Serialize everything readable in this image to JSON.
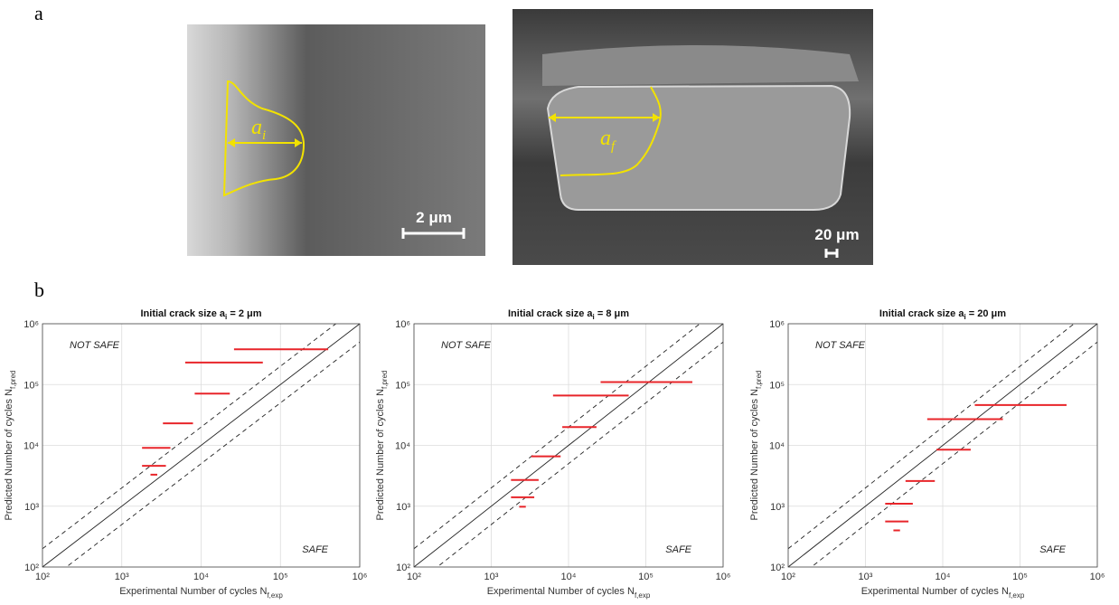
{
  "panel_labels": [
    "a",
    "b"
  ],
  "micrographs": [
    {
      "symbol": "a",
      "subscript": "i",
      "scale_bar": "2 μm"
    },
    {
      "symbol": "a",
      "subscript": "f",
      "scale_bar": "20 μm"
    }
  ],
  "chart_data": [
    {
      "type": "range",
      "title": [
        "Initial crack size a",
        "i",
        " = 2 μm"
      ],
      "xlabel": [
        "Experimental Number of cycles N",
        "f,exp"
      ],
      "ylabel": [
        "Predicted Number of cycles N",
        "f,pred"
      ],
      "annotations": [
        "NOT SAFE",
        "SAFE"
      ],
      "x_low": [
        26000,
        6300,
        8300,
        3300,
        1800,
        1800,
        2300
      ],
      "x_high": [
        400000,
        60000,
        23000,
        7900,
        4100,
        3600,
        2800
      ],
      "values": [
        380000,
        230000,
        71000,
        23000,
        9100,
        4600,
        3300
      ],
      "color": "#e8252a",
      "reference_factor": 2,
      "log": true,
      "grid": true,
      "xlim": [
        100,
        1000000
      ],
      "ylim": [
        100,
        1000000
      ],
      "xticks": [
        {
          "value": 100,
          "label": "10²"
        },
        {
          "value": 1000,
          "label": "10³"
        },
        {
          "value": 10000,
          "label": "10⁴"
        },
        {
          "value": 100000,
          "label": "10⁵"
        },
        {
          "value": 1000000,
          "label": "10⁶"
        }
      ],
      "yticks": [
        {
          "value": 100,
          "label": "10²"
        },
        {
          "value": 1000,
          "label": "10³"
        },
        {
          "value": 10000,
          "label": "10⁴"
        },
        {
          "value": 100000,
          "label": "10⁵"
        },
        {
          "value": 1000000,
          "label": "10⁶"
        }
      ]
    },
    {
      "type": "range",
      "title": [
        "Initial crack size a",
        "i",
        " = 8 μm"
      ],
      "xlabel": [
        "Experimental Number of cycles N",
        "f,exp"
      ],
      "ylabel": [
        "Predicted Number of cycles N",
        "f,pred"
      ],
      "annotations": [
        "NOT SAFE",
        "SAFE"
      ],
      "x_low": [
        26000,
        6300,
        8300,
        3300,
        1800,
        1800,
        2300
      ],
      "x_high": [
        400000,
        60000,
        23000,
        7900,
        4100,
        3600,
        2800
      ],
      "values": [
        110000,
        66000,
        20000,
        6600,
        2700,
        1400,
        980
      ],
      "color": "#e8252a",
      "reference_factor": 2,
      "log": true,
      "grid": true,
      "xlim": [
        100,
        1000000
      ],
      "ylim": [
        100,
        1000000
      ],
      "xticks": [
        {
          "value": 100,
          "label": "10²"
        },
        {
          "value": 1000,
          "label": "10³"
        },
        {
          "value": 10000,
          "label": "10⁴"
        },
        {
          "value": 100000,
          "label": "10⁵"
        },
        {
          "value": 1000000,
          "label": "10⁶"
        }
      ],
      "yticks": [
        {
          "value": 100,
          "label": "10²"
        },
        {
          "value": 1000,
          "label": "10³"
        },
        {
          "value": 10000,
          "label": "10⁴"
        },
        {
          "value": 100000,
          "label": "10⁵"
        },
        {
          "value": 1000000,
          "label": "10⁶"
        }
      ]
    },
    {
      "type": "range",
      "title": [
        "Initial crack size a",
        "i",
        " = 20 μm"
      ],
      "xlabel": [
        "Experimental Number of cycles N",
        "f,exp"
      ],
      "ylabel": [
        "Predicted Number of cycles N",
        "f,pred"
      ],
      "annotations": [
        "NOT SAFE",
        "SAFE"
      ],
      "x_low": [
        26000,
        6300,
        8300,
        3300,
        1800,
        1800,
        2300
      ],
      "x_high": [
        400000,
        60000,
        23000,
        7900,
        4100,
        3600,
        2800
      ],
      "values": [
        46000,
        27000,
        8500,
        2600,
        1100,
        560,
        400
      ],
      "color": "#e8252a",
      "reference_factor": 2,
      "log": true,
      "grid": true,
      "xlim": [
        100,
        1000000
      ],
      "ylim": [
        100,
        1000000
      ],
      "xticks": [
        {
          "value": 100,
          "label": "10²"
        },
        {
          "value": 1000,
          "label": "10³"
        },
        {
          "value": 10000,
          "label": "10⁴"
        },
        {
          "value": 100000,
          "label": "10⁵"
        },
        {
          "value": 1000000,
          "label": "10⁶"
        }
      ],
      "yticks": [
        {
          "value": 100,
          "label": "10²"
        },
        {
          "value": 1000,
          "label": "10³"
        },
        {
          "value": 10000,
          "label": "10⁴"
        },
        {
          "value": 100000,
          "label": "10⁵"
        },
        {
          "value": 1000000,
          "label": "10⁶"
        }
      ]
    }
  ]
}
